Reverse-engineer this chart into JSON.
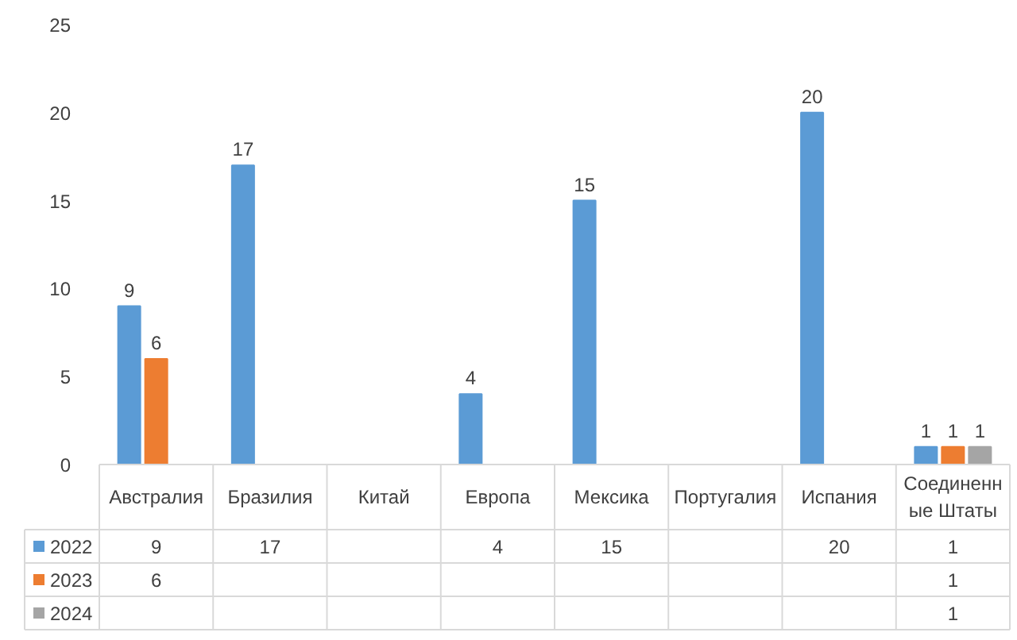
{
  "chart_data": {
    "type": "bar",
    "categories": [
      "Австралия",
      "Бразилия",
      "Китай",
      "Европа",
      "Мексика",
      "Португалия",
      "Испания",
      "Соединенные Штаты"
    ],
    "series": [
      {
        "name": "2022",
        "color": "#5b9bd5",
        "values": [
          9,
          17,
          null,
          4,
          15,
          null,
          20,
          1
        ],
        "value_labels": [
          "9",
          "17",
          null,
          "4",
          "15",
          null,
          "20",
          "1"
        ]
      },
      {
        "name": "2023",
        "color": "#ed7d31",
        "values": [
          6,
          null,
          null,
          null,
          null,
          null,
          null,
          1
        ],
        "value_labels": [
          "6",
          null,
          null,
          null,
          null,
          null,
          null,
          "1"
        ]
      },
      {
        "name": "2024",
        "color": "#a5a5a5",
        "values": [
          null,
          null,
          null,
          null,
          null,
          null,
          null,
          1
        ],
        "value_labels": [
          null,
          null,
          null,
          null,
          null,
          null,
          null,
          "1"
        ]
      }
    ],
    "ylim": [
      0,
      25
    ],
    "yticks": [
      0,
      5,
      10,
      15,
      20,
      25
    ],
    "grid": false,
    "legend": "bottom"
  }
}
